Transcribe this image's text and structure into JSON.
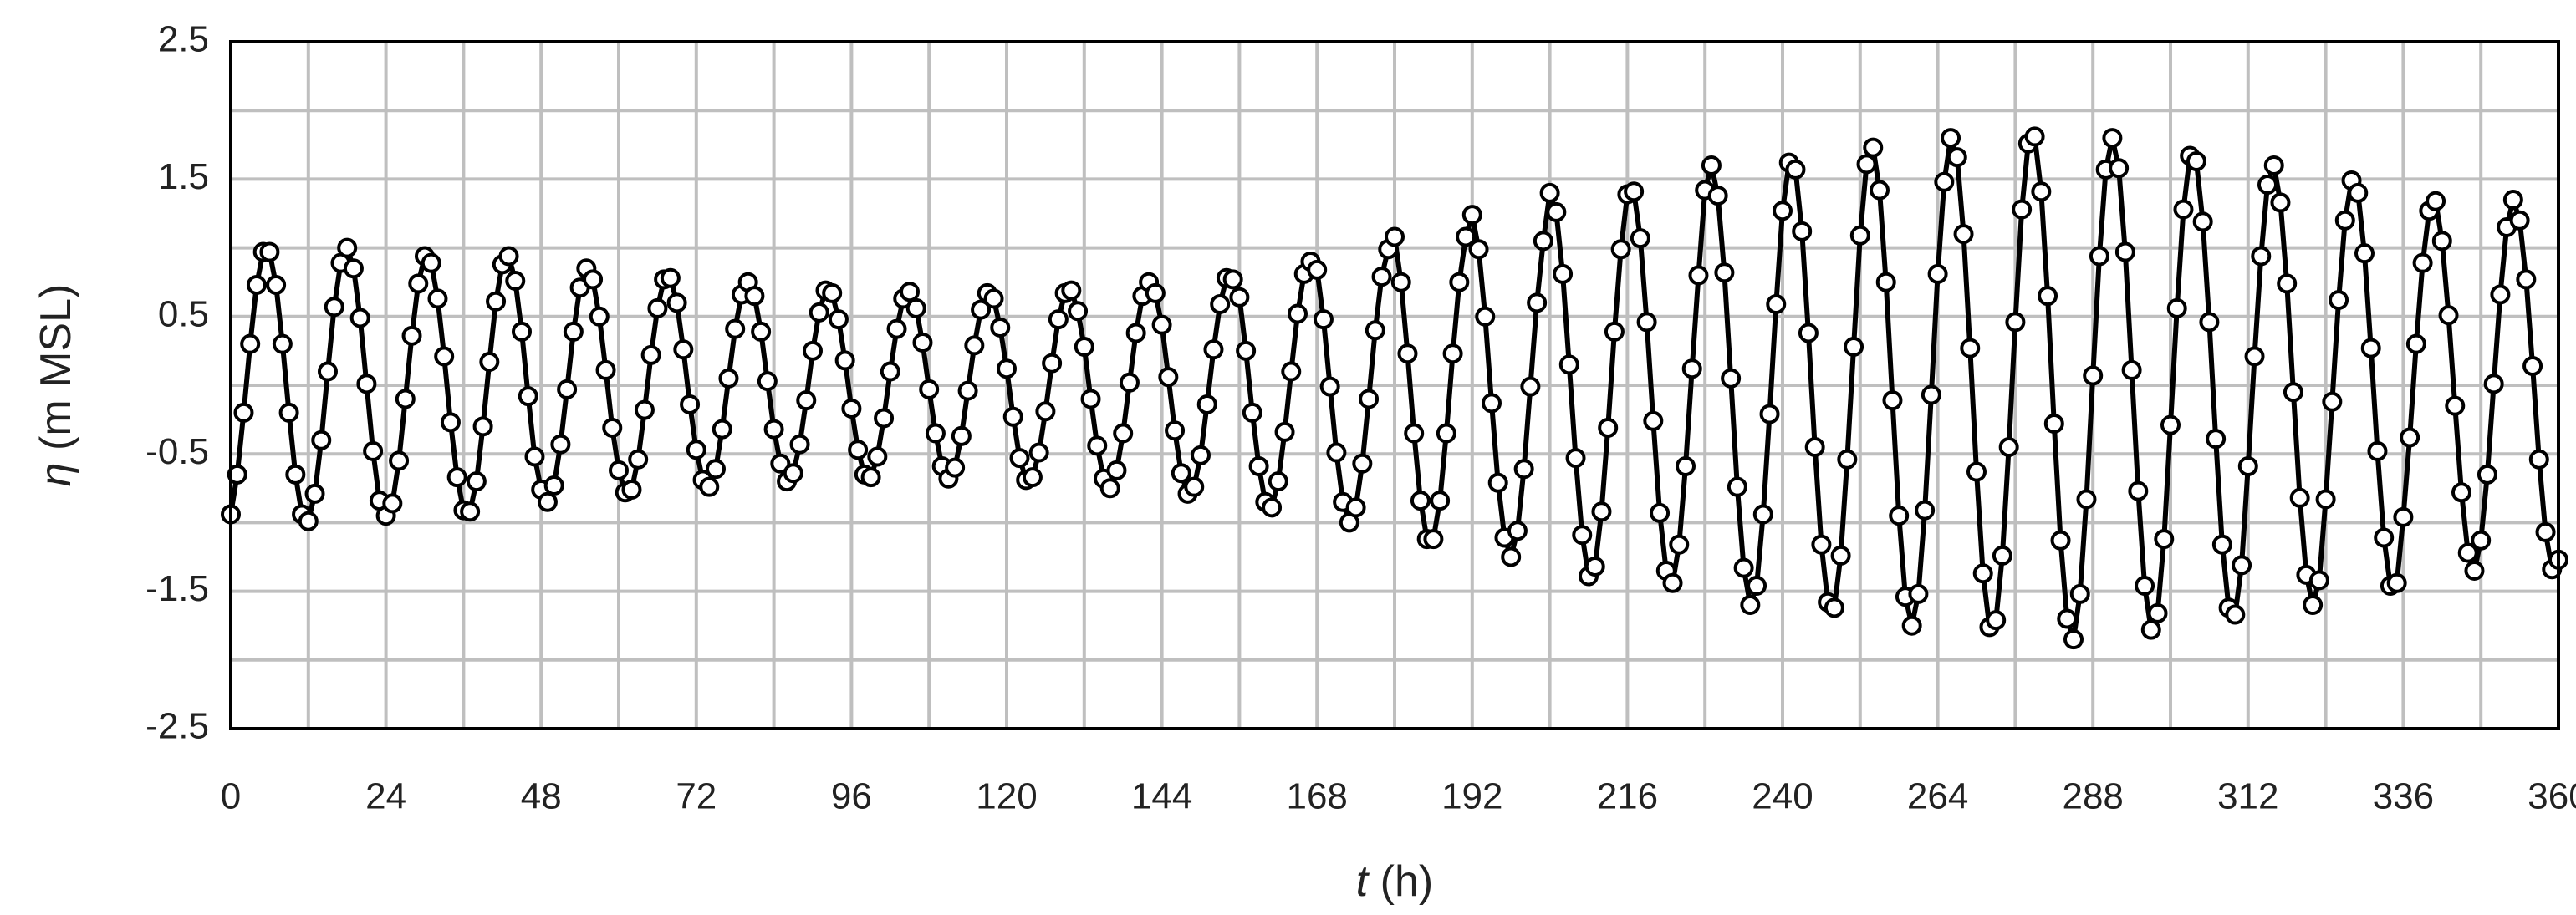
{
  "chart_data": {
    "type": "line",
    "ylabel_symbol": "η",
    "ylabel_unit": "(m MSL)",
    "xlabel_symbol": "t",
    "xlabel_unit": "(h)",
    "xlim": [
      0,
      360
    ],
    "xticks": [
      0,
      24,
      48,
      72,
      96,
      120,
      144,
      168,
      192,
      216,
      240,
      264,
      288,
      312,
      336,
      360
    ],
    "xgrid_minor": [
      12,
      36,
      60,
      84,
      108,
      132,
      156,
      180,
      204,
      228,
      252,
      276,
      300,
      324,
      348
    ],
    "ylim": [
      -2.5,
      2.5
    ],
    "yticks": [
      -2.5,
      -1.5,
      -0.5,
      0.5,
      1.5,
      2.5
    ],
    "ygrid_minor": [
      -2,
      -1,
      0,
      1,
      2
    ],
    "grid": true,
    "markers": "circle",
    "x": [
      0,
      1,
      2,
      3,
      4,
      5,
      6,
      7,
      8,
      9,
      10,
      11,
      12,
      13,
      14,
      15,
      16,
      17,
      18,
      19,
      20,
      21,
      22,
      23,
      24,
      25,
      26,
      27,
      28,
      29,
      30,
      31,
      32,
      33,
      34,
      35,
      36,
      37,
      38,
      39,
      40,
      41,
      42,
      43,
      44,
      45,
      46,
      47,
      48,
      49,
      50,
      51,
      52,
      53,
      54,
      55,
      56,
      57,
      58,
      59,
      60,
      61,
      62,
      63,
      64,
      65,
      66,
      67,
      68,
      69,
      70,
      71,
      72,
      73,
      74,
      75,
      76,
      77,
      78,
      79,
      80,
      81,
      82,
      83,
      84,
      85,
      86,
      87,
      88,
      89,
      90,
      91,
      92,
      93,
      94,
      95,
      96,
      97,
      98,
      99,
      100,
      101,
      102,
      103,
      104,
      105,
      106,
      107,
      108,
      109,
      110,
      111,
      112,
      113,
      114,
      115,
      116,
      117,
      118,
      119,
      120,
      121,
      122,
      123,
      124,
      125,
      126,
      127,
      128,
      129,
      130,
      131,
      132,
      133,
      134,
      135,
      136,
      137,
      138,
      139,
      140,
      141,
      142,
      143,
      144,
      145,
      146,
      147,
      148,
      149,
      150,
      151,
      152,
      153,
      154,
      155,
      156,
      157,
      158,
      159,
      160,
      161,
      162,
      163,
      164,
      165,
      166,
      167,
      168,
      169,
      170,
      171,
      172,
      173,
      174,
      175,
      176,
      177,
      178,
      179,
      180,
      181,
      182,
      183,
      184,
      185,
      186,
      187,
      188,
      189,
      190,
      191,
      192,
      193,
      194,
      195,
      196,
      197,
      198,
      199,
      200,
      201,
      202,
      203,
      204,
      205,
      206,
      207,
      208,
      209,
      210,
      211,
      212,
      213,
      214,
      215,
      216,
      217,
      218,
      219,
      220,
      221,
      222,
      223,
      224,
      225,
      226,
      227,
      228,
      229,
      230,
      231,
      232,
      233,
      234,
      235,
      236,
      237,
      238,
      239,
      240,
      241,
      242,
      243,
      244,
      245,
      246,
      247,
      248,
      249,
      250,
      251,
      252,
      253,
      254,
      255,
      256,
      257,
      258,
      259,
      260,
      261,
      262,
      263,
      264,
      265,
      266,
      267,
      268,
      269,
      270,
      271,
      272,
      273,
      274,
      275,
      276,
      277,
      278,
      279,
      280,
      281,
      282,
      283,
      284,
      285,
      286,
      287,
      288,
      289,
      290,
      291,
      292,
      293,
      294,
      295,
      296,
      297,
      298,
      299,
      300,
      301,
      302,
      303,
      304,
      305,
      306,
      307,
      308,
      309,
      310,
      311,
      312,
      313,
      314,
      315,
      316,
      317,
      318,
      319,
      320,
      321,
      322,
      323,
      324,
      325,
      326,
      327,
      328,
      329,
      330,
      331,
      332,
      333,
      334,
      335,
      336,
      337,
      338,
      339,
      340,
      341,
      342,
      343,
      344,
      345,
      346,
      347,
      348,
      349,
      350,
      351,
      352,
      353,
      354,
      355,
      356,
      357,
      358,
      359,
      360
    ],
    "series": [
      {
        "color": "#000000",
        "values": [
          -0.94,
          -0.65,
          -0.2,
          0.3,
          0.73,
          0.97,
          0.97,
          0.73,
          0.3,
          -0.2,
          -0.65,
          -0.94,
          -0.99,
          -0.79,
          -0.4,
          0.1,
          0.57,
          0.89,
          1.0,
          0.85,
          0.49,
          0.01,
          -0.48,
          -0.84,
          -0.95,
          -0.86,
          -0.55,
          -0.1,
          0.36,
          0.74,
          0.94,
          0.89,
          0.63,
          0.21,
          -0.27,
          -0.67,
          -0.91,
          -0.92,
          -0.7,
          -0.3,
          0.17,
          0.61,
          0.88,
          0.94,
          0.76,
          0.39,
          -0.08,
          -0.52,
          -0.76,
          -0.85,
          -0.73,
          -0.43,
          -0.03,
          0.39,
          0.71,
          0.85,
          0.77,
          0.5,
          0.11,
          -0.31,
          -0.62,
          -0.78,
          -0.76,
          -0.54,
          -0.18,
          0.22,
          0.56,
          0.77,
          0.78,
          0.6,
          0.26,
          -0.14,
          -0.47,
          -0.69,
          -0.74,
          -0.61,
          -0.32,
          0.05,
          0.41,
          0.66,
          0.75,
          0.65,
          0.39,
          0.03,
          -0.32,
          -0.57,
          -0.7,
          -0.64,
          -0.43,
          -0.11,
          0.25,
          0.53,
          0.69,
          0.67,
          0.48,
          0.18,
          -0.17,
          -0.47,
          -0.65,
          -0.67,
          -0.52,
          -0.24,
          0.1,
          0.41,
          0.63,
          0.68,
          0.56,
          0.31,
          -0.03,
          -0.35,
          -0.59,
          -0.68,
          -0.6,
          -0.37,
          -0.04,
          0.29,
          0.55,
          0.67,
          0.63,
          0.42,
          0.12,
          -0.23,
          -0.53,
          -0.69,
          -0.67,
          -0.49,
          -0.19,
          0.16,
          0.48,
          0.67,
          0.69,
          0.54,
          0.28,
          -0.1,
          -0.44,
          -0.68,
          -0.75,
          -0.62,
          -0.35,
          0.02,
          0.38,
          0.65,
          0.75,
          0.67,
          0.44,
          0.06,
          -0.33,
          -0.64,
          -0.79,
          -0.74,
          -0.51,
          -0.14,
          0.26,
          0.59,
          0.78,
          0.77,
          0.64,
          0.25,
          -0.2,
          -0.59,
          -0.85,
          -0.89,
          -0.7,
          -0.34,
          0.1,
          0.52,
          0.81,
          0.9,
          0.84,
          0.48,
          -0.01,
          -0.49,
          -0.85,
          -1.0,
          -0.89,
          -0.57,
          -0.1,
          0.4,
          0.79,
          0.99,
          1.08,
          0.75,
          0.23,
          -0.35,
          -0.84,
          -1.12,
          -1.12,
          -0.84,
          -0.35,
          0.23,
          0.75,
          1.08,
          1.24,
          0.99,
          0.5,
          -0.13,
          -0.71,
          -1.11,
          -1.25,
          -1.06,
          -0.61,
          -0.01,
          0.6,
          1.05,
          1.4,
          1.26,
          0.81,
          0.15,
          -0.53,
          -1.09,
          -1.39,
          -1.32,
          -0.92,
          -0.31,
          0.39,
          0.99,
          1.39,
          1.41,
          1.07,
          0.46,
          -0.26,
          -0.93,
          -1.35,
          -1.44,
          -1.16,
          -0.59,
          0.12,
          0.8,
          1.42,
          1.6,
          1.38,
          0.82,
          0.05,
          -0.74,
          -1.33,
          -1.6,
          -1.46,
          -0.94,
          -0.21,
          0.59,
          1.27,
          1.62,
          1.57,
          1.12,
          0.38,
          -0.45,
          -1.16,
          -1.58,
          -1.62,
          -1.24,
          -0.54,
          0.28,
          1.09,
          1.61,
          1.73,
          1.42,
          0.75,
          -0.11,
          -0.95,
          -1.54,
          -1.75,
          -1.52,
          -0.91,
          -0.07,
          0.81,
          1.48,
          1.8,
          1.66,
          1.1,
          0.27,
          -0.63,
          -1.37,
          -1.76,
          -1.71,
          -1.24,
          -0.45,
          0.46,
          1.28,
          1.76,
          1.81,
          1.41,
          0.65,
          -0.28,
          -1.13,
          -1.7,
          -1.85,
          -1.52,
          -0.83,
          0.07,
          0.94,
          1.57,
          1.8,
          1.58,
          0.97,
          0.11,
          -0.77,
          -1.46,
          -1.78,
          -1.66,
          -1.12,
          -0.29,
          0.56,
          1.28,
          1.67,
          1.63,
          1.19,
          0.46,
          -0.39,
          -1.16,
          -1.62,
          -1.67,
          -1.31,
          -0.59,
          0.21,
          0.94,
          1.46,
          1.6,
          1.33,
          0.74,
          -0.05,
          -0.82,
          -1.38,
          -1.6,
          -1.42,
          -0.83,
          -0.12,
          0.62,
          1.2,
          1.49,
          1.4,
          0.96,
          0.27,
          -0.48,
          -1.11,
          -1.46,
          -1.44,
          -0.96,
          -0.38,
          0.3,
          0.89,
          1.27,
          1.34,
          1.05,
          0.51,
          -0.15,
          -0.78,
          -1.22,
          -1.35,
          -1.13,
          -0.65,
          0.01,
          0.66,
          1.15,
          1.35,
          1.2,
          0.77,
          0.14,
          -0.54,
          -1.07,
          -1.34,
          -1.27
        ]
      }
    ]
  }
}
